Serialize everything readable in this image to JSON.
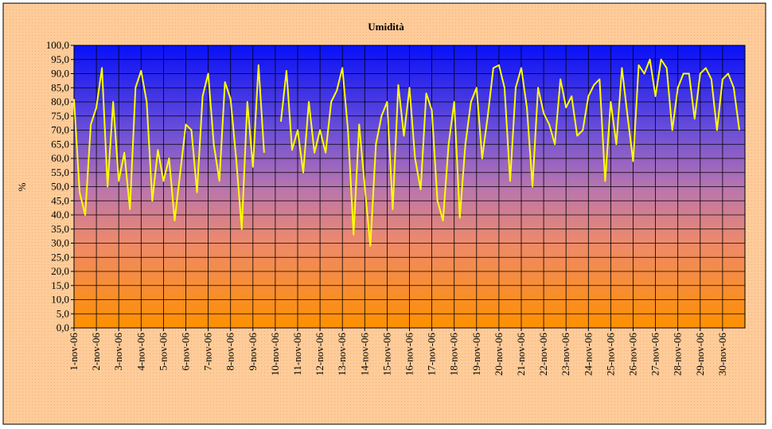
{
  "chart_data": {
    "type": "line",
    "title": "Umidità",
    "y_label": "%",
    "x": [
      1,
      1.25,
      1.5,
      1.75,
      2,
      2.25,
      2.5,
      2.75,
      3,
      3.25,
      3.5,
      3.75,
      4,
      4.25,
      4.5,
      4.75,
      5,
      5.25,
      5.5,
      5.75,
      6,
      6.25,
      6.5,
      6.75,
      7,
      7.25,
      7.5,
      7.75,
      8,
      8.25,
      8.5,
      8.75,
      9,
      9.25,
      9.5,
      9.75,
      10,
      10.25,
      10.5,
      10.75,
      11,
      11.25,
      11.5,
      11.75,
      12,
      12.25,
      12.5,
      12.75,
      13,
      13.25,
      13.5,
      13.75,
      14,
      14.25,
      14.5,
      14.75,
      15,
      15.25,
      15.5,
      15.75,
      16,
      16.25,
      16.5,
      16.75,
      17,
      17.25,
      17.5,
      17.75,
      18,
      18.25,
      18.5,
      18.75,
      19,
      19.25,
      19.5,
      19.75,
      20,
      20.25,
      20.5,
      20.75,
      21,
      21.25,
      21.5,
      21.75,
      22,
      22.25,
      22.5,
      22.75,
      23,
      23.25,
      23.5,
      23.75,
      24,
      24.25,
      24.5,
      24.75,
      25,
      25.25,
      25.5,
      25.75,
      26,
      26.25,
      26.5,
      26.75,
      27,
      27.25,
      27.5,
      27.75,
      28,
      28.25,
      28.5,
      28.75,
      29,
      29.25,
      29.5,
      29.75,
      30,
      30.25,
      30.5,
      30.75
    ],
    "series": [
      {
        "name": "Umidità",
        "color": "#ffff00",
        "values": [
          81,
          48,
          40,
          72,
          78,
          92,
          50,
          80,
          52,
          62,
          42,
          85,
          91,
          80,
          45,
          63,
          52,
          60,
          38,
          55,
          72,
          70,
          48,
          82,
          90,
          65,
          52,
          87,
          81,
          60,
          35,
          80,
          57,
          93,
          62,
          null,
          null,
          73,
          91,
          63,
          70,
          55,
          80,
          62,
          70,
          62,
          80,
          84,
          92,
          70,
          33,
          72,
          50,
          29,
          65,
          75,
          80,
          42,
          86,
          68,
          85,
          60,
          49,
          83,
          77,
          45,
          38,
          65,
          80,
          39,
          65,
          80,
          85,
          60,
          75,
          92,
          93,
          85,
          52,
          85,
          92,
          78,
          50,
          85,
          76,
          72,
          65,
          88,
          78,
          82,
          68,
          70,
          82,
          86,
          88,
          52,
          80,
          65,
          92,
          75,
          59,
          93,
          90,
          95,
          82,
          95,
          92,
          70,
          85,
          90,
          90,
          74,
          90,
          92,
          88,
          70,
          88,
          90,
          85,
          70
        ]
      }
    ],
    "xlim": [
      1,
      31
    ],
    "xticks": [
      {
        "value": 1,
        "label": "1-nov-06"
      },
      {
        "value": 2,
        "label": "2-nov-06"
      },
      {
        "value": 3,
        "label": "3-nov-06"
      },
      {
        "value": 4,
        "label": "4-nov-06"
      },
      {
        "value": 5,
        "label": "5-nov-06"
      },
      {
        "value": 6,
        "label": "6-nov-06"
      },
      {
        "value": 7,
        "label": "7-nov-06"
      },
      {
        "value": 8,
        "label": "8-nov-06"
      },
      {
        "value": 9,
        "label": "9-nov-06"
      },
      {
        "value": 10,
        "label": "10-nov-06"
      },
      {
        "value": 11,
        "label": "11-nov-06"
      },
      {
        "value": 12,
        "label": "12-nov-06"
      },
      {
        "value": 13,
        "label": "13-nov-06"
      },
      {
        "value": 14,
        "label": "14-nov-06"
      },
      {
        "value": 15,
        "label": "15-nov-06"
      },
      {
        "value": 16,
        "label": "16-nov-06"
      },
      {
        "value": 17,
        "label": "17-nov-06"
      },
      {
        "value": 18,
        "label": "18-nov-06"
      },
      {
        "value": 19,
        "label": "19-nov-06"
      },
      {
        "value": 20,
        "label": "20-nov-06"
      },
      {
        "value": 21,
        "label": "21-nov-06"
      },
      {
        "value": 22,
        "label": "22-nov-06"
      },
      {
        "value": 23,
        "label": "23-nov-06"
      },
      {
        "value": 24,
        "label": "24-nov-06"
      },
      {
        "value": 25,
        "label": "25-nov-06"
      },
      {
        "value": 26,
        "label": "26-nov-06"
      },
      {
        "value": 27,
        "label": "27-nov-06"
      },
      {
        "value": 28,
        "label": "28-nov-06"
      },
      {
        "value": 29,
        "label": "29-nov-06"
      },
      {
        "value": 30,
        "label": "30-nov-06"
      }
    ],
    "ylim": [
      0,
      100
    ],
    "yticks": [
      {
        "value": 0,
        "label": "0,0"
      },
      {
        "value": 5,
        "label": "5,0"
      },
      {
        "value": 10,
        "label": "10,0"
      },
      {
        "value": 15,
        "label": "15,0"
      },
      {
        "value": 20,
        "label": "20,0"
      },
      {
        "value": 25,
        "label": "25,0"
      },
      {
        "value": 30,
        "label": "30,0"
      },
      {
        "value": 35,
        "label": "35,0"
      },
      {
        "value": 40,
        "label": "40,0"
      },
      {
        "value": 45,
        "label": "45,0"
      },
      {
        "value": 50,
        "label": "50,0"
      },
      {
        "value": 55,
        "label": "55,0"
      },
      {
        "value": 60,
        "label": "60,0"
      },
      {
        "value": 65,
        "label": "65,0"
      },
      {
        "value": 70,
        "label": "70,0"
      },
      {
        "value": 75,
        "label": "75,0"
      },
      {
        "value": 80,
        "label": "80,0"
      },
      {
        "value": 85,
        "label": "85,0"
      },
      {
        "value": 90,
        "label": "90,0"
      },
      {
        "value": 95,
        "label": "95,0"
      },
      {
        "value": 100,
        "label": "100,0"
      }
    ],
    "grid": true
  }
}
